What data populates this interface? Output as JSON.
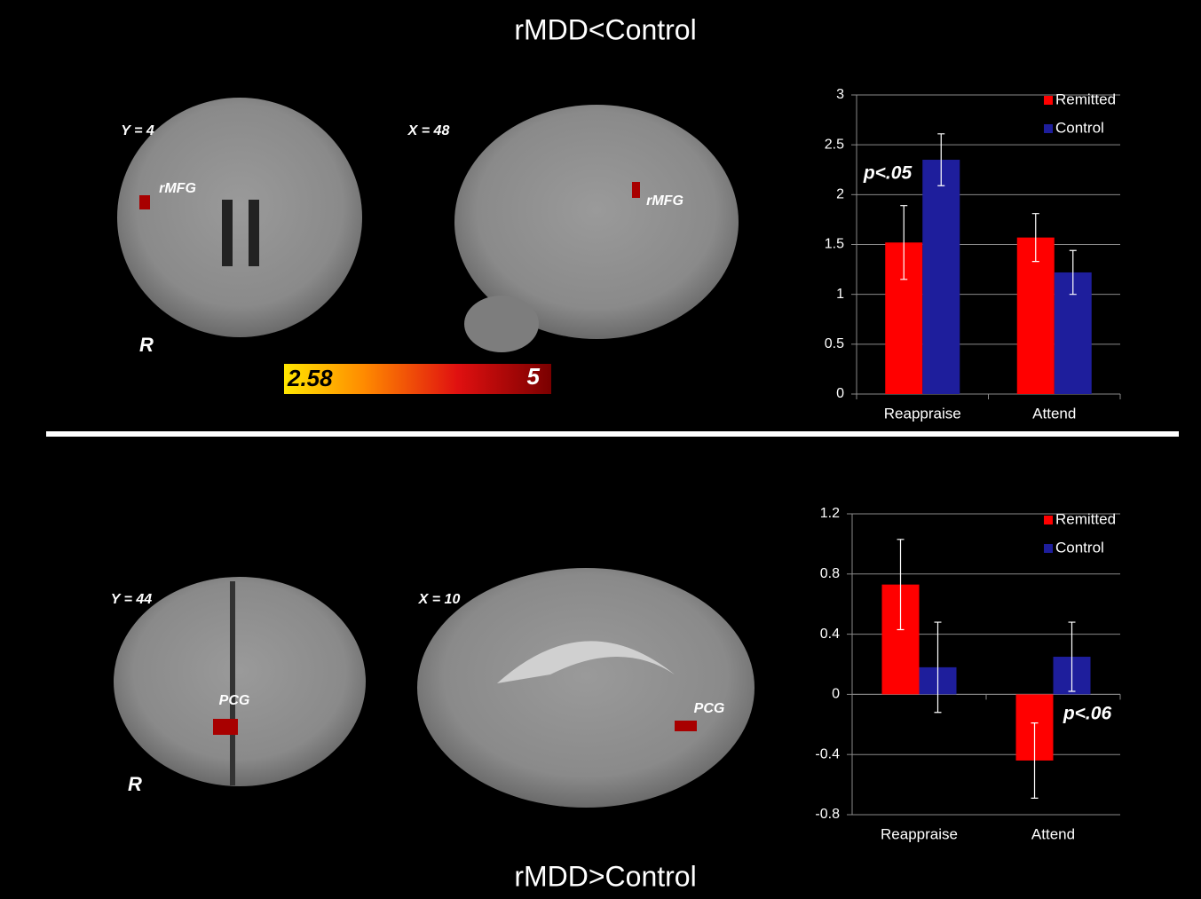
{
  "panels": [
    {
      "title": "rMDD<Control",
      "images": [
        {
          "coord": "Y = 4",
          "region": "rMFG",
          "side": "R"
        },
        {
          "coord": "X = 48",
          "region": "rMFG"
        }
      ]
    },
    {
      "title": "rMDD>Control",
      "images": [
        {
          "coord": "Y = 44",
          "region": "PCG",
          "side": "R"
        },
        {
          "coord": "X = 10",
          "region": "PCG"
        }
      ]
    }
  ],
  "colorbar": {
    "range": [
      2.58,
      5
    ]
  },
  "chart_data": [
    {
      "type": "bar",
      "categories": [
        "Reappraise",
        "Attend"
      ],
      "series": [
        {
          "name": "Remitted",
          "color": "#ff0000",
          "values": [
            1.52,
            1.57
          ],
          "errors": [
            0.37,
            0.24
          ]
        },
        {
          "name": "Control",
          "color": "#1e1e9c",
          "values": [
            2.35,
            1.22
          ],
          "errors": [
            0.26,
            0.22
          ]
        }
      ],
      "ylim": [
        0,
        3
      ],
      "yticks": [
        0,
        0.5,
        1,
        1.5,
        2,
        2.5,
        3
      ],
      "grid": true,
      "annotation": "p<.05"
    },
    {
      "type": "bar",
      "categories": [
        "Reappraise",
        "Attend"
      ],
      "series": [
        {
          "name": "Remitted",
          "color": "#ff0000",
          "values": [
            0.73,
            -0.44
          ],
          "errors": [
            0.3,
            0.25
          ]
        },
        {
          "name": "Control",
          "color": "#1e1e9c",
          "values": [
            0.18,
            0.25
          ],
          "errors": [
            0.3,
            0.23
          ]
        }
      ],
      "ylim": [
        -0.8,
        1.2
      ],
      "yticks": [
        -0.8,
        -0.4,
        0,
        0.4,
        0.8,
        1.2
      ],
      "grid": true,
      "annotation": "p<.06"
    }
  ]
}
